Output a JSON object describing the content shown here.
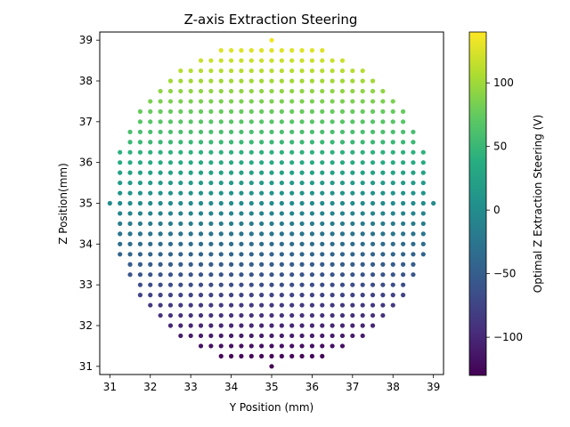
{
  "chart_data": {
    "type": "scatter",
    "title": "Z-axis Extraction Steering",
    "xlabel": "Y Position (mm)",
    "ylabel": "Z Position(mm)",
    "xlim": [
      30.75,
      39.25
    ],
    "ylim": [
      30.8,
      39.2
    ],
    "xticks": [
      "31",
      "32",
      "33",
      "34",
      "35",
      "36",
      "37",
      "38",
      "39"
    ],
    "yticks": [
      "31",
      "32",
      "33",
      "34",
      "35",
      "36",
      "37",
      "38",
      "39"
    ],
    "grid": false,
    "colorbar": {
      "label": "Optimal Z Extraction Steering (V)",
      "colormap": "viridis",
      "range": [
        -130,
        140
      ],
      "ticks": [
        "−100",
        "−50",
        "0",
        "50",
        "100"
      ]
    },
    "series": [
      {
        "grid_spacing_y_mm": 0.25,
        "grid_spacing_z_mm": 0.25,
        "center_mm": [
          35,
          35
        ],
        "radius_mm": 4.0,
        "color_value_rule": "steering_V ≈ 33.75 × (Z − 35)"
      }
    ]
  },
  "colors": {
    "axis": "#000000",
    "background": "#ffffff"
  }
}
